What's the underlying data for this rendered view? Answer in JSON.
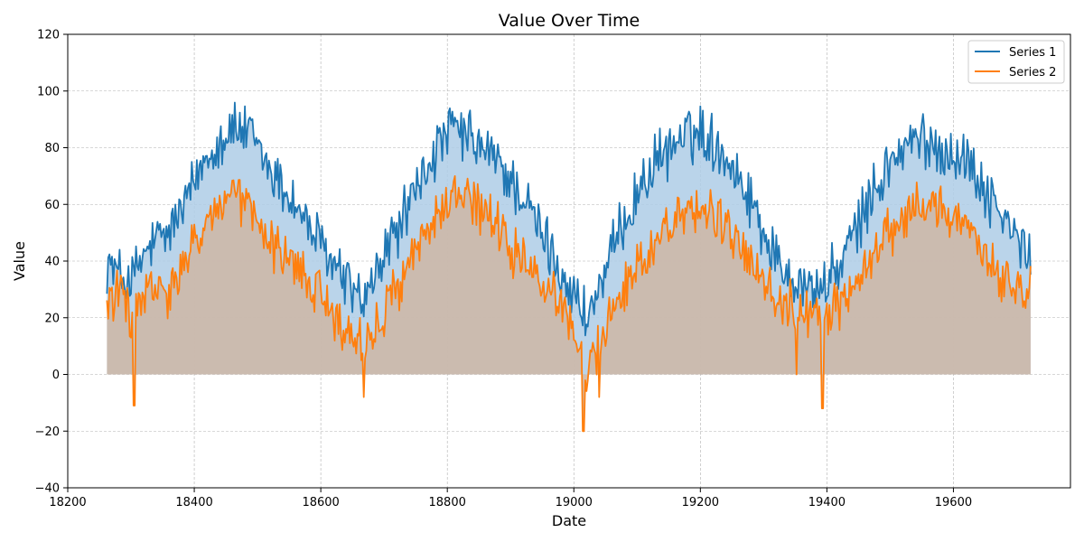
{
  "chart_data": {
    "type": "area",
    "title": "Value Over Time",
    "xlabel": "Date",
    "ylabel": "Value",
    "xlim": [
      18200,
      19785
    ],
    "ylim": [
      -40,
      120
    ],
    "x_range": [
      18262,
      19723
    ],
    "xticks": [
      18200,
      18400,
      18600,
      18800,
      19000,
      19200,
      19400,
      19600
    ],
    "yticks": [
      -40,
      -20,
      0,
      20,
      40,
      60,
      80,
      100,
      120
    ],
    "grid": true,
    "legend": "top-right",
    "series": [
      {
        "name": "Series 1",
        "color": "#1f77b4",
        "fill_color": "#aecde6",
        "approx_points": [
          [
            18262,
            40
          ],
          [
            18280,
            35
          ],
          [
            18300,
            33
          ],
          [
            18330,
            45
          ],
          [
            18360,
            50
          ],
          [
            18390,
            62
          ],
          [
            18420,
            78
          ],
          [
            18460,
            87
          ],
          [
            18490,
            84
          ],
          [
            18520,
            72
          ],
          [
            18560,
            60
          ],
          [
            18600,
            45
          ],
          [
            18640,
            33
          ],
          [
            18670,
            25
          ],
          [
            18700,
            42
          ],
          [
            18740,
            60
          ],
          [
            18780,
            78
          ],
          [
            18810,
            87
          ],
          [
            18840,
            82
          ],
          [
            18880,
            75
          ],
          [
            18920,
            62
          ],
          [
            18960,
            45
          ],
          [
            18990,
            32
          ],
          [
            19020,
            20
          ],
          [
            19050,
            35
          ],
          [
            19080,
            55
          ],
          [
            19120,
            72
          ],
          [
            19160,
            82
          ],
          [
            19200,
            86
          ],
          [
            19240,
            78
          ],
          [
            19280,
            62
          ],
          [
            19320,
            40
          ],
          [
            19360,
            32
          ],
          [
            19390,
            30
          ],
          [
            19420,
            38
          ],
          [
            19460,
            58
          ],
          [
            19500,
            75
          ],
          [
            19540,
            83
          ],
          [
            19580,
            80
          ],
          [
            19620,
            76
          ],
          [
            19660,
            62
          ],
          [
            19700,
            48
          ],
          [
            19723,
            40
          ]
        ]
      },
      {
        "name": "Series 2",
        "color": "#ff7f0e",
        "fill_color": "#cdb8a8",
        "approx_points": [
          [
            18262,
            25
          ],
          [
            18280,
            30
          ],
          [
            18300,
            20
          ],
          [
            18330,
            30
          ],
          [
            18360,
            28
          ],
          [
            18390,
            40
          ],
          [
            18420,
            55
          ],
          [
            18460,
            63
          ],
          [
            18490,
            58
          ],
          [
            18520,
            45
          ],
          [
            18560,
            38
          ],
          [
            18600,
            28
          ],
          [
            18640,
            15
          ],
          [
            18670,
            10
          ],
          [
            18700,
            22
          ],
          [
            18740,
            40
          ],
          [
            18780,
            55
          ],
          [
            18810,
            63
          ],
          [
            18840,
            60
          ],
          [
            18880,
            52
          ],
          [
            18920,
            38
          ],
          [
            18960,
            30
          ],
          [
            18990,
            22
          ],
          [
            19020,
            0
          ],
          [
            19050,
            18
          ],
          [
            19080,
            30
          ],
          [
            19120,
            45
          ],
          [
            19160,
            55
          ],
          [
            19200,
            60
          ],
          [
            19240,
            52
          ],
          [
            19280,
            38
          ],
          [
            19320,
            28
          ],
          [
            19360,
            22
          ],
          [
            19390,
            20
          ],
          [
            19420,
            25
          ],
          [
            19460,
            38
          ],
          [
            19500,
            50
          ],
          [
            19540,
            62
          ],
          [
            19580,
            58
          ],
          [
            19620,
            50
          ],
          [
            19660,
            40
          ],
          [
            19700,
            30
          ],
          [
            19723,
            32
          ]
        ],
        "dips": [
          [
            18305,
            -11
          ],
          [
            18668,
            -8
          ],
          [
            19015,
            -20
          ],
          [
            19040,
            -8
          ],
          [
            19352,
            0
          ],
          [
            19393,
            -12
          ]
        ]
      }
    ]
  }
}
